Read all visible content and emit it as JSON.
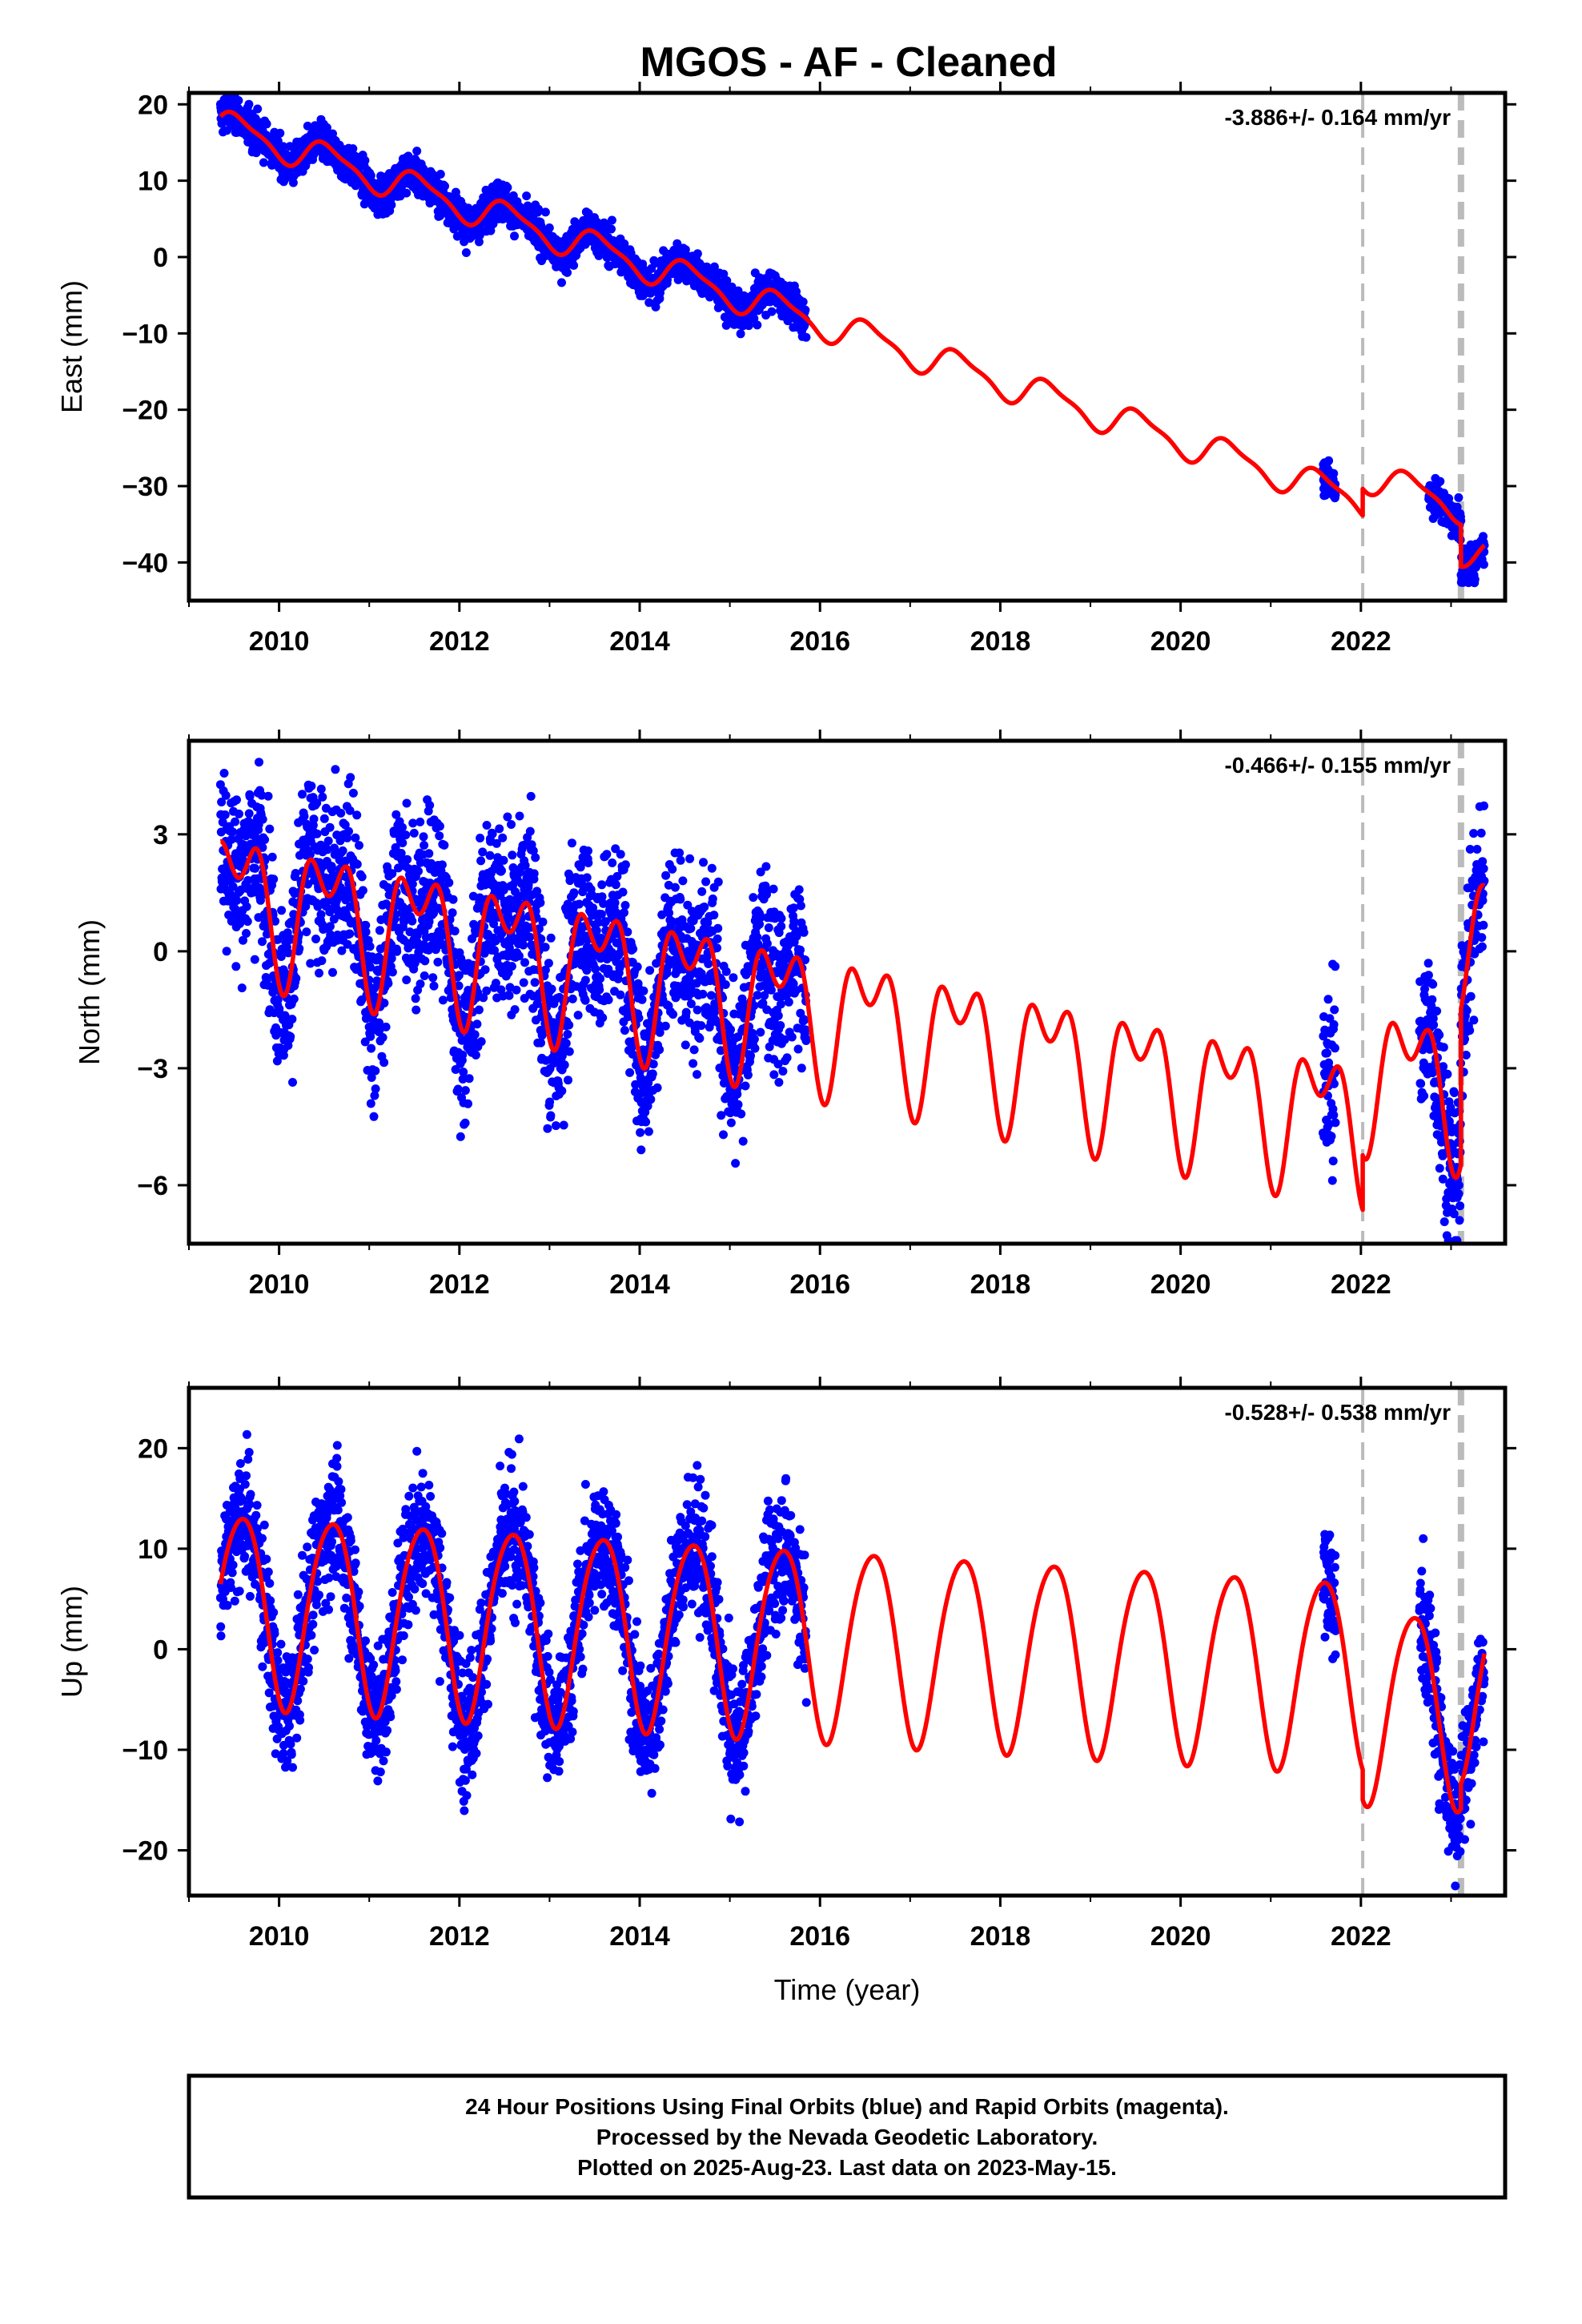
{
  "title": "MGOS  - AF - Cleaned",
  "colors": {
    "data": "#0000ff",
    "model": "#ff0000",
    "break": "#bbbbbb",
    "frame": "#000000"
  },
  "footer": {
    "line1": "24 Hour Positions Using Final Orbits (blue) and Rapid Orbits (magenta).",
    "line2": "Processed by the Nevada Geodetic Laboratory.",
    "line3": "Plotted on 2025-Aug-23. Last data on 2023-May-15."
  },
  "chart_data": [
    {
      "type": "scatter",
      "name": "east",
      "ylabel": "East (mm)",
      "xlabel": "",
      "rate_label": "-3.886+/- 0.164 mm/yr",
      "xlim": [
        2009.0,
        2023.6
      ],
      "ylim": [
        -45.0,
        21.5
      ],
      "x_ticks": [
        "2010",
        "2012",
        "2014",
        "2016",
        "2018",
        "2020",
        "2022"
      ],
      "y_ticks": [
        "20",
        "10",
        "0",
        "−10",
        "−20",
        "−30",
        "−40"
      ],
      "y_tick_values": [
        20,
        10,
        0,
        -10,
        -20,
        -30,
        -40
      ],
      "breaks": [
        2022.02,
        2023.11
      ],
      "rate_mm_per_yr": -3.886,
      "model": {
        "intercept_2009_3": 17.5,
        "annual_amp": 2.0,
        "annual_phase": 2009.55,
        "semiannual_amp": 0.6,
        "semiannual_phase": 2009.4,
        "offsets": [
          {
            "year": 2022.02,
            "value": 3.5
          },
          {
            "year": 2023.11,
            "value": -5.5
          }
        ]
      },
      "data_spans": [
        [
          2009.35,
          2015.85
        ],
        [
          2021.58,
          2021.72
        ],
        [
          2022.75,
          2023.37
        ]
      ],
      "scatter_sigma": 1.2
    },
    {
      "type": "scatter",
      "name": "north",
      "ylabel": "North (mm)",
      "xlabel": "",
      "rate_label": "-0.466+/- 0.155 mm/yr",
      "xlim": [
        2009.0,
        2023.6
      ],
      "ylim": [
        -7.5,
        5.4
      ],
      "x_ticks": [
        "2010",
        "2012",
        "2014",
        "2016",
        "2018",
        "2020",
        "2022"
      ],
      "y_ticks": [
        "3",
        "0",
        "−3",
        "−6"
      ],
      "y_tick_values": [
        3,
        0,
        -3,
        -6
      ],
      "breaks": [
        2022.02,
        2023.11
      ],
      "rate_mm_per_yr": -0.466,
      "model": {
        "intercept_2009_3": 1.6,
        "annual_amp": 1.4,
        "annual_phase": 2009.55,
        "semiannual_amp": 1.0,
        "semiannual_phase": 2009.3,
        "offsets": [
          {
            "year": 2022.02,
            "value": 1.4
          },
          {
            "year": 2023.11,
            "value": 4.0
          }
        ]
      },
      "data_spans": [
        [
          2009.35,
          2015.85
        ],
        [
          2021.58,
          2021.72
        ],
        [
          2022.65,
          2023.37
        ]
      ],
      "scatter_sigma": 1.1
    },
    {
      "type": "scatter",
      "name": "up",
      "ylabel": "Up (mm)",
      "xlabel": "Time (year)",
      "rate_label": "-0.528+/- 0.538 mm/yr",
      "xlim": [
        2009.0,
        2023.6
      ],
      "ylim": [
        -24.5,
        26.0
      ],
      "x_ticks": [
        "2010",
        "2012",
        "2014",
        "2016",
        "2018",
        "2020",
        "2022"
      ],
      "y_ticks": [
        "20",
        "10",
        "0",
        "−10",
        "−20"
      ],
      "y_tick_values": [
        20,
        10,
        0,
        -10,
        -20
      ],
      "breaks": [
        2022.02,
        2023.11
      ],
      "rate_mm_per_yr": -0.528,
      "model": {
        "intercept_2009_3": 4.5,
        "annual_amp": 9.5,
        "annual_phase": 2009.58,
        "semiannual_amp": 1.0,
        "semiannual_phase": 2009.3,
        "offsets": [
          {
            "year": 2022.02,
            "value": -3.0
          },
          {
            "year": 2023.11,
            "value": 2.5
          }
        ]
      },
      "data_spans": [
        [
          2009.35,
          2015.85
        ],
        [
          2021.58,
          2021.72
        ],
        [
          2022.65,
          2023.37
        ]
      ],
      "scatter_sigma": 3.2
    }
  ]
}
